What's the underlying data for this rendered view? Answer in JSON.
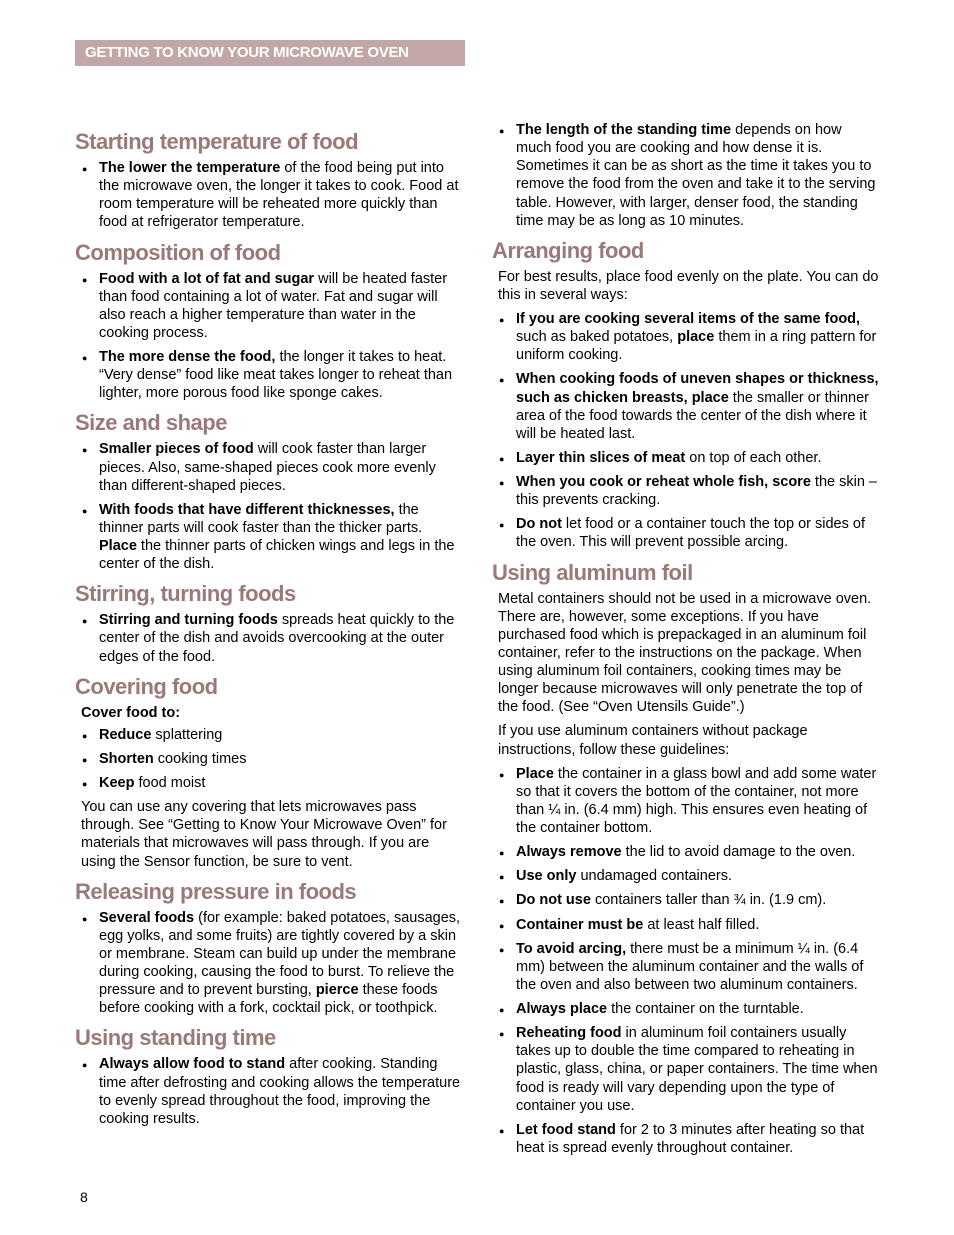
{
  "colors": {
    "header_bg": "#c1a8a6",
    "header_text": "#ffffff",
    "heading": "#9a7a78",
    "body_text": "#000000",
    "page_bg": "#ffffff"
  },
  "typography": {
    "heading_font": "Arial Narrow",
    "heading_size_pt": 16,
    "body_font": "Arial",
    "body_size_pt": 11
  },
  "header": {
    "title": "GETTING TO KNOW YOUR  MICROWAVE OVEN"
  },
  "page_number": "8",
  "left_column": [
    {
      "type": "section",
      "heading": "Starting temperature of food",
      "items": [
        {
          "type": "bullet",
          "html": "<b>The lower the temperature</b> of the food being put into the microwave oven, the longer it takes to cook. Food at room temperature will be reheated more quickly than food at refrigerator temperature."
        }
      ]
    },
    {
      "type": "section",
      "heading": "Composition of food",
      "items": [
        {
          "type": "bullet",
          "html": "<b>Food with a lot of fat and sugar</b> will be heated faster than food containing a lot of water. Fat and sugar will also reach a higher temperature than water in the cooking process."
        },
        {
          "type": "bullet",
          "html": "<b>The more dense the food,</b> the longer it takes to heat. “Very dense” food like meat takes longer to reheat than lighter, more porous food like sponge cakes."
        }
      ]
    },
    {
      "type": "section",
      "heading": "Size and shape",
      "items": [
        {
          "type": "bullet",
          "html": "<b>Smaller pieces of food</b> will cook faster than larger pieces. Also, same-shaped pieces cook more evenly than different-shaped pieces."
        },
        {
          "type": "bullet",
          "html": "<b>With foods that have different thicknesses,</b> the thinner parts will cook faster than the thicker parts. <b>Place</b> the thinner parts of chicken wings and legs in the center of the dish."
        }
      ]
    },
    {
      "type": "section",
      "heading": "Stirring, turning foods",
      "items": [
        {
          "type": "bullet",
          "html": "<b>Stirring and turning foods</b> spreads heat quickly to the center of the dish and avoids overcooking at the outer edges of the food."
        }
      ]
    },
    {
      "type": "section",
      "heading": "Covering food",
      "items": [
        {
          "type": "sub",
          "html": "Cover food to:"
        },
        {
          "type": "bullet",
          "html": "<b>Reduce</b> splattering"
        },
        {
          "type": "bullet",
          "html": "<b>Shorten</b> cooking times"
        },
        {
          "type": "bullet",
          "html": "<b>Keep</b> food moist"
        },
        {
          "type": "para",
          "html": "You can use any covering that lets microwaves pass through. See “Getting to Know Your Microwave Oven” for materials that microwaves will pass through. If you are using the Sensor function, be sure to vent."
        }
      ]
    },
    {
      "type": "section",
      "heading": "Releasing pressure in foods",
      "items": [
        {
          "type": "bullet",
          "html": "<b>Several foods</b> (for example: baked potatoes, sausages, egg yolks, and some fruits) are tightly covered by a skin or membrane. Steam can build up under the membrane during cooking, causing the food to burst. To relieve the pressure and to prevent bursting, <b>pierce</b> these foods before cooking with a fork, cocktail pick, or toothpick."
        }
      ]
    },
    {
      "type": "section",
      "heading": "Using standing time",
      "items": [
        {
          "type": "bullet",
          "html": "<b>Always allow food to stand</b> after cooking. Standing time after defrosting and cooking allows the temperature to evenly spread throughout the food, improving the cooking results."
        }
      ]
    }
  ],
  "right_column": [
    {
      "type": "section",
      "heading": null,
      "items": [
        {
          "type": "bullet",
          "html": "<b>The length of the standing time</b> depends on how much food you are cooking and how dense it is. Sometimes it can be as short as the time it takes you to remove the food from the oven and take it to the serving table. However, with larger, denser food, the standing time may be as long as 10 minutes."
        }
      ]
    },
    {
      "type": "section",
      "heading": "Arranging food",
      "items": [
        {
          "type": "para",
          "html": "For best results, place food evenly on the plate. You can do this in several ways:"
        },
        {
          "type": "bullet",
          "html": "<b>If you are cooking several items of the same food,</b> such as baked potatoes, <b>place</b> them in a ring pattern for uniform cooking."
        },
        {
          "type": "bullet",
          "html": "<b>When cooking foods of uneven shapes or thickness, such as chicken breasts, place</b> the smaller or thinner area of the food towards the center of the dish where it will be heated last."
        },
        {
          "type": "bullet",
          "html": "<b>Layer thin slices of meat</b> on top of each other."
        },
        {
          "type": "bullet",
          "html": "<b>When you cook or reheat whole fish, score</b> the skin – this prevents cracking."
        },
        {
          "type": "bullet",
          "html": "<b>Do not</b> let food or a container touch the top or sides of the oven. This will prevent possible arcing."
        }
      ]
    },
    {
      "type": "section",
      "heading": "Using aluminum foil",
      "items": [
        {
          "type": "para",
          "html": "Metal containers should not be used in a microwave oven. There are, however, some exceptions. If you have purchased food which is prepackaged in an aluminum foil container, refer to the instructions on the package. When using aluminum foil containers, cooking times may be longer because microwaves will only penetrate the top of the food. (See “Oven Utensils Guide”.)"
        },
        {
          "type": "para",
          "html": "If you use aluminum containers without package instructions, follow these guidelines:"
        },
        {
          "type": "bullet",
          "html": "<b>Place</b> the container in a glass bowl and add some water so that it covers the bottom of the container, not more than ¼ in. (6.4 mm) high. This ensures even heating of the container bottom."
        },
        {
          "type": "bullet",
          "html": "<b>Always remove</b> the lid to avoid damage to the oven."
        },
        {
          "type": "bullet",
          "html": "<b>Use only</b> undamaged containers."
        },
        {
          "type": "bullet",
          "html": "<b>Do not use</b> containers taller than ¾ in. (1.9 cm)."
        },
        {
          "type": "bullet",
          "html": "<b>Container must be</b> at least half filled."
        },
        {
          "type": "bullet",
          "html": "<b>To avoid arcing,</b> there must be a minimum ¼ in. (6.4 mm) between the aluminum container and the walls of the oven and also between two aluminum containers."
        },
        {
          "type": "bullet",
          "html": "<b>Always place</b> the container on the turntable."
        },
        {
          "type": "bullet",
          "html": "<b>Reheating food</b> in aluminum foil containers usually takes up to double the time compared to reheating in plastic, glass, china, or paper containers. The time when food is ready will vary depending upon the type of container you use."
        },
        {
          "type": "bullet",
          "html": "<b>Let food stand</b> for 2 to 3 minutes after heating so that heat is spread evenly throughout container."
        }
      ]
    }
  ]
}
